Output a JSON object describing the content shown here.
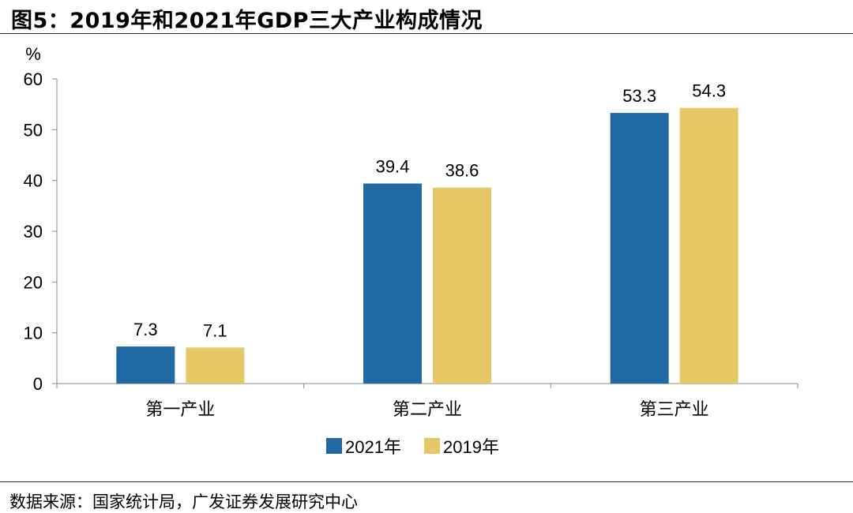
{
  "chart_data": {
    "type": "bar",
    "title": "图5：2019年和2021年GDP三大产业构成情况",
    "ylabel": "%",
    "xlabel": "",
    "ylim": [
      0,
      60
    ],
    "yticks": [
      0,
      10,
      20,
      30,
      40,
      50,
      60
    ],
    "categories": [
      "第一产业",
      "第二产业",
      "第三产业"
    ],
    "series": [
      {
        "name": "2021年",
        "color": "#1F6AA5",
        "values": [
          7.3,
          39.4,
          53.3
        ]
      },
      {
        "name": "2019年",
        "color": "#E5C766",
        "values": [
          7.1,
          38.6,
          54.3
        ]
      }
    ],
    "legend": "bottom-center",
    "grid": false
  },
  "source": "数据来源：国家统计局，广发证券发展研究中心"
}
